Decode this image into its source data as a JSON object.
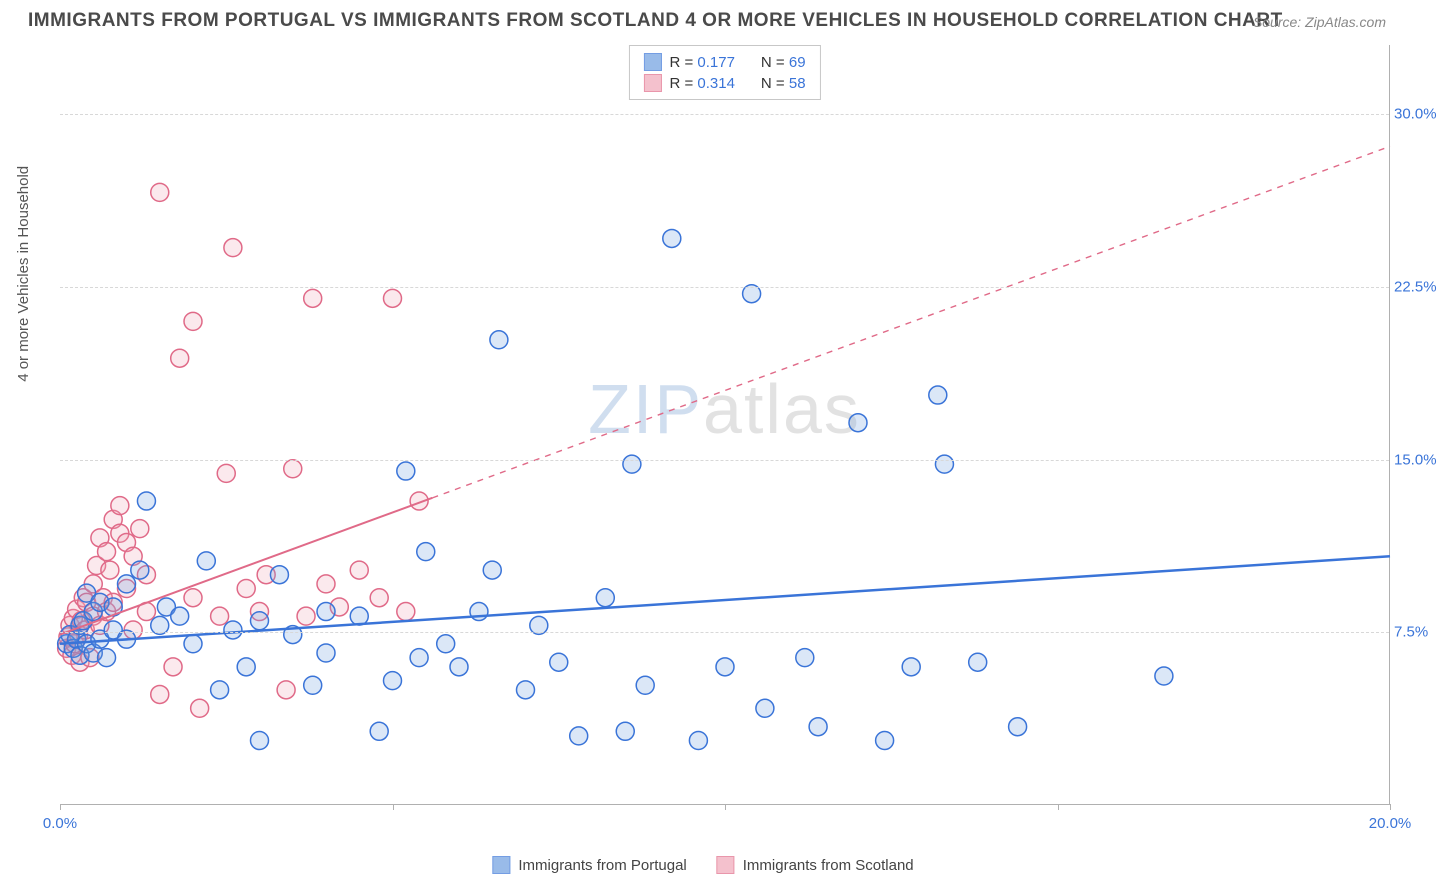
{
  "title": "IMMIGRANTS FROM PORTUGAL VS IMMIGRANTS FROM SCOTLAND 4 OR MORE VEHICLES IN HOUSEHOLD CORRELATION CHART",
  "source": "Source: ZipAtlas.com",
  "watermark": {
    "z": "ZIP",
    "rest": "atlas"
  },
  "ylabel": "4 or more Vehicles in Household",
  "chart": {
    "type": "scatter",
    "xlim": [
      0,
      20
    ],
    "ylim": [
      0,
      33
    ],
    "xtick_values": [
      0,
      5,
      10,
      15,
      20
    ],
    "xtick_labels": [
      "0.0%",
      "",
      "",
      "",
      "20.0%"
    ],
    "ytick_values": [
      7.5,
      15.0,
      22.5,
      30.0
    ],
    "ytick_labels": [
      "7.5%",
      "15.0%",
      "22.5%",
      "30.0%"
    ],
    "background_color": "#ffffff",
    "grid_color": "#d8d8d8",
    "marker_radius": 9,
    "marker_stroke_width": 1.5,
    "marker_fill_opacity": 0.25,
    "series": [
      {
        "id": "portugal",
        "label": "Immigrants from Portugal",
        "color": "#6f9fe0",
        "stroke": "#3a74d8",
        "R": "0.177",
        "N": "69",
        "trend": {
          "x1": 0,
          "y1": 7.0,
          "x2": 20,
          "y2": 10.8,
          "dashed_after_x": 20,
          "line_width": 2.5
        },
        "points": [
          [
            0.1,
            7.0
          ],
          [
            0.15,
            7.4
          ],
          [
            0.2,
            6.8
          ],
          [
            0.25,
            7.2
          ],
          [
            0.3,
            6.5
          ],
          [
            0.3,
            7.8
          ],
          [
            0.35,
            8.0
          ],
          [
            0.4,
            7.0
          ],
          [
            0.4,
            9.2
          ],
          [
            0.5,
            6.6
          ],
          [
            0.5,
            8.4
          ],
          [
            0.6,
            7.2
          ],
          [
            0.6,
            8.8
          ],
          [
            0.7,
            6.4
          ],
          [
            0.8,
            7.6
          ],
          [
            0.8,
            8.6
          ],
          [
            1.0,
            7.2
          ],
          [
            1.0,
            9.6
          ],
          [
            1.2,
            10.2
          ],
          [
            1.3,
            13.2
          ],
          [
            1.5,
            7.8
          ],
          [
            1.6,
            8.6
          ],
          [
            1.8,
            8.2
          ],
          [
            2.0,
            7.0
          ],
          [
            2.2,
            10.6
          ],
          [
            2.4,
            5.0
          ],
          [
            2.6,
            7.6
          ],
          [
            2.8,
            6.0
          ],
          [
            3.0,
            2.8
          ],
          [
            3.0,
            8.0
          ],
          [
            3.3,
            10.0
          ],
          [
            3.5,
            7.4
          ],
          [
            3.8,
            5.2
          ],
          [
            4.0,
            6.6
          ],
          [
            4.0,
            8.4
          ],
          [
            4.5,
            8.2
          ],
          [
            4.8,
            3.2
          ],
          [
            5.0,
            5.4
          ],
          [
            5.2,
            14.5
          ],
          [
            5.4,
            6.4
          ],
          [
            5.5,
            11.0
          ],
          [
            5.8,
            7.0
          ],
          [
            6.0,
            6.0
          ],
          [
            6.3,
            8.4
          ],
          [
            6.5,
            10.2
          ],
          [
            6.6,
            20.2
          ],
          [
            7.0,
            5.0
          ],
          [
            7.2,
            7.8
          ],
          [
            7.5,
            6.2
          ],
          [
            7.8,
            3.0
          ],
          [
            8.2,
            9.0
          ],
          [
            8.5,
            3.2
          ],
          [
            8.6,
            14.8
          ],
          [
            8.8,
            5.2
          ],
          [
            9.2,
            24.6
          ],
          [
            9.6,
            2.8
          ],
          [
            10.0,
            6.0
          ],
          [
            10.4,
            22.2
          ],
          [
            10.6,
            4.2
          ],
          [
            11.2,
            6.4
          ],
          [
            11.4,
            3.4
          ],
          [
            12.0,
            16.6
          ],
          [
            12.4,
            2.8
          ],
          [
            12.8,
            6.0
          ],
          [
            13.2,
            17.8
          ],
          [
            13.3,
            14.8
          ],
          [
            13.8,
            6.2
          ],
          [
            14.4,
            3.4
          ],
          [
            16.6,
            5.6
          ]
        ]
      },
      {
        "id": "scotland",
        "label": "Immigrants from Scotland",
        "color": "#f0a8b8",
        "stroke": "#e06a88",
        "R": "0.314",
        "N": "58",
        "trend": {
          "x1": 0,
          "y1": 7.4,
          "x2": 20,
          "y2": 28.6,
          "dashed_after_x": 5.6,
          "line_width": 2
        },
        "points": [
          [
            0.1,
            6.8
          ],
          [
            0.12,
            7.3
          ],
          [
            0.15,
            7.8
          ],
          [
            0.18,
            6.5
          ],
          [
            0.2,
            8.1
          ],
          [
            0.22,
            7.0
          ],
          [
            0.25,
            8.5
          ],
          [
            0.28,
            7.4
          ],
          [
            0.3,
            6.2
          ],
          [
            0.32,
            8.0
          ],
          [
            0.35,
            9.0
          ],
          [
            0.38,
            7.6
          ],
          [
            0.4,
            8.8
          ],
          [
            0.45,
            6.4
          ],
          [
            0.5,
            9.6
          ],
          [
            0.5,
            8.2
          ],
          [
            0.55,
            10.4
          ],
          [
            0.6,
            7.8
          ],
          [
            0.6,
            11.6
          ],
          [
            0.65,
            9.0
          ],
          [
            0.7,
            8.4
          ],
          [
            0.7,
            11.0
          ],
          [
            0.75,
            10.2
          ],
          [
            0.8,
            12.4
          ],
          [
            0.8,
            8.8
          ],
          [
            0.9,
            11.8
          ],
          [
            0.9,
            13.0
          ],
          [
            1.0,
            9.4
          ],
          [
            1.0,
            11.4
          ],
          [
            1.1,
            7.6
          ],
          [
            1.1,
            10.8
          ],
          [
            1.2,
            12.0
          ],
          [
            1.3,
            8.4
          ],
          [
            1.3,
            10.0
          ],
          [
            1.5,
            4.8
          ],
          [
            1.5,
            26.6
          ],
          [
            1.7,
            6.0
          ],
          [
            1.8,
            19.4
          ],
          [
            2.0,
            9.0
          ],
          [
            2.0,
            21.0
          ],
          [
            2.1,
            4.2
          ],
          [
            2.4,
            8.2
          ],
          [
            2.5,
            14.4
          ],
          [
            2.6,
            24.2
          ],
          [
            2.8,
            9.4
          ],
          [
            3.0,
            8.4
          ],
          [
            3.1,
            10.0
          ],
          [
            3.4,
            5.0
          ],
          [
            3.5,
            14.6
          ],
          [
            3.7,
            8.2
          ],
          [
            3.8,
            22.0
          ],
          [
            4.0,
            9.6
          ],
          [
            4.2,
            8.6
          ],
          [
            4.5,
            10.2
          ],
          [
            4.8,
            9.0
          ],
          [
            5.0,
            22.0
          ],
          [
            5.2,
            8.4
          ],
          [
            5.4,
            13.2
          ]
        ]
      }
    ]
  },
  "legend_stats": [
    {
      "series": "portugal",
      "R_label": "R =",
      "N_label": "N ="
    },
    {
      "series": "scotland",
      "R_label": "R =",
      "N_label": "N ="
    }
  ]
}
